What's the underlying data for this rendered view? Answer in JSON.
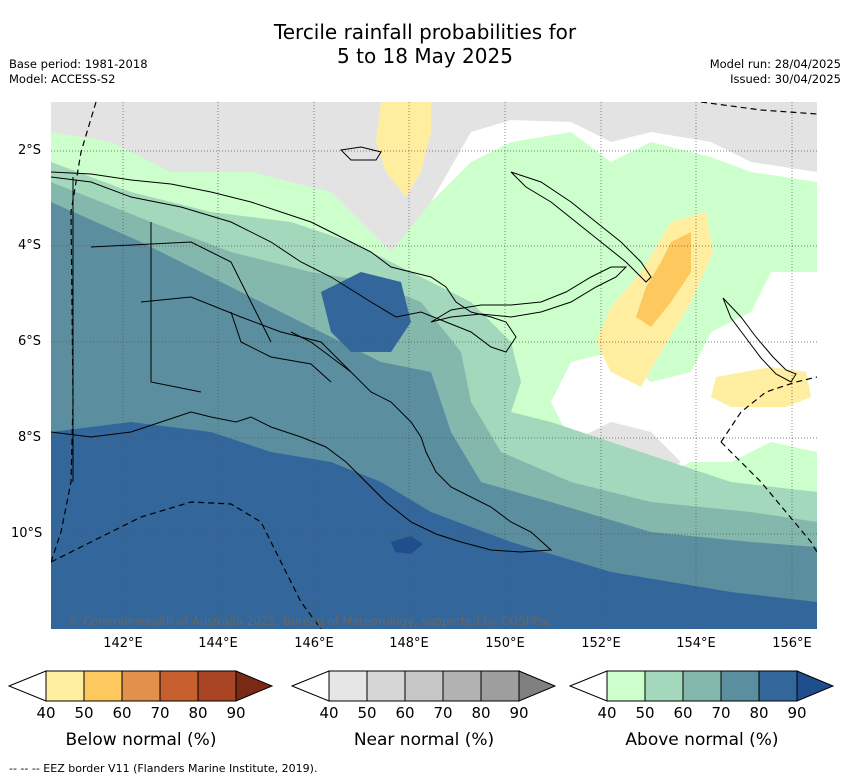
{
  "title": {
    "line1": "Tercile rainfall probabilities for",
    "line2": "5 to 18 May 2025"
  },
  "meta": {
    "base_period": "Base period: 1981-2018",
    "model": "Model: ACCESS-S2",
    "model_run": "Model run: 28/04/2025",
    "issued": "Issued: 30/04/2025"
  },
  "map": {
    "latitude_labels": [
      "2°S",
      "4°S",
      "6°S",
      "8°S",
      "10°S"
    ],
    "longitude_labels": [
      "142°E",
      "144°E",
      "146°E",
      "148°E",
      "150°E",
      "152°E",
      "154°E",
      "156°E"
    ],
    "copyright": "© Commonwealth of Australia 2025, Bureau of Meteorology, supported by COSPPac",
    "colors": {
      "land_boundary": "#000000",
      "ocean_background": "#ffffff"
    }
  },
  "legends": [
    {
      "title": "Below normal (%)",
      "ticks": [
        "40",
        "50",
        "60",
        "70",
        "80",
        "90"
      ],
      "colors": [
        "#ffeea0",
        "#fdc95e",
        "#e1914b",
        "#c85f2e",
        "#a94424",
        "#7a2a14"
      ]
    },
    {
      "title": "Near normal (%)",
      "ticks": [
        "40",
        "50",
        "60",
        "70",
        "80",
        "90"
      ],
      "colors": [
        "#e6e6e6",
        "#d6d6d6",
        "#c6c6c6",
        "#b2b2b2",
        "#9e9e9e",
        "#808080"
      ]
    },
    {
      "title": "Above normal (%)",
      "ticks": [
        "40",
        "50",
        "60",
        "70",
        "80",
        "90"
      ],
      "colors": [
        "#ccffcc",
        "#a3d8bc",
        "#85b8ac",
        "#5b8fa0",
        "#33669a",
        "#1f4e8c"
      ]
    }
  ],
  "footnote": "-- -- -- EEZ border V11 (Flanders Marine Institute, 2019)."
}
